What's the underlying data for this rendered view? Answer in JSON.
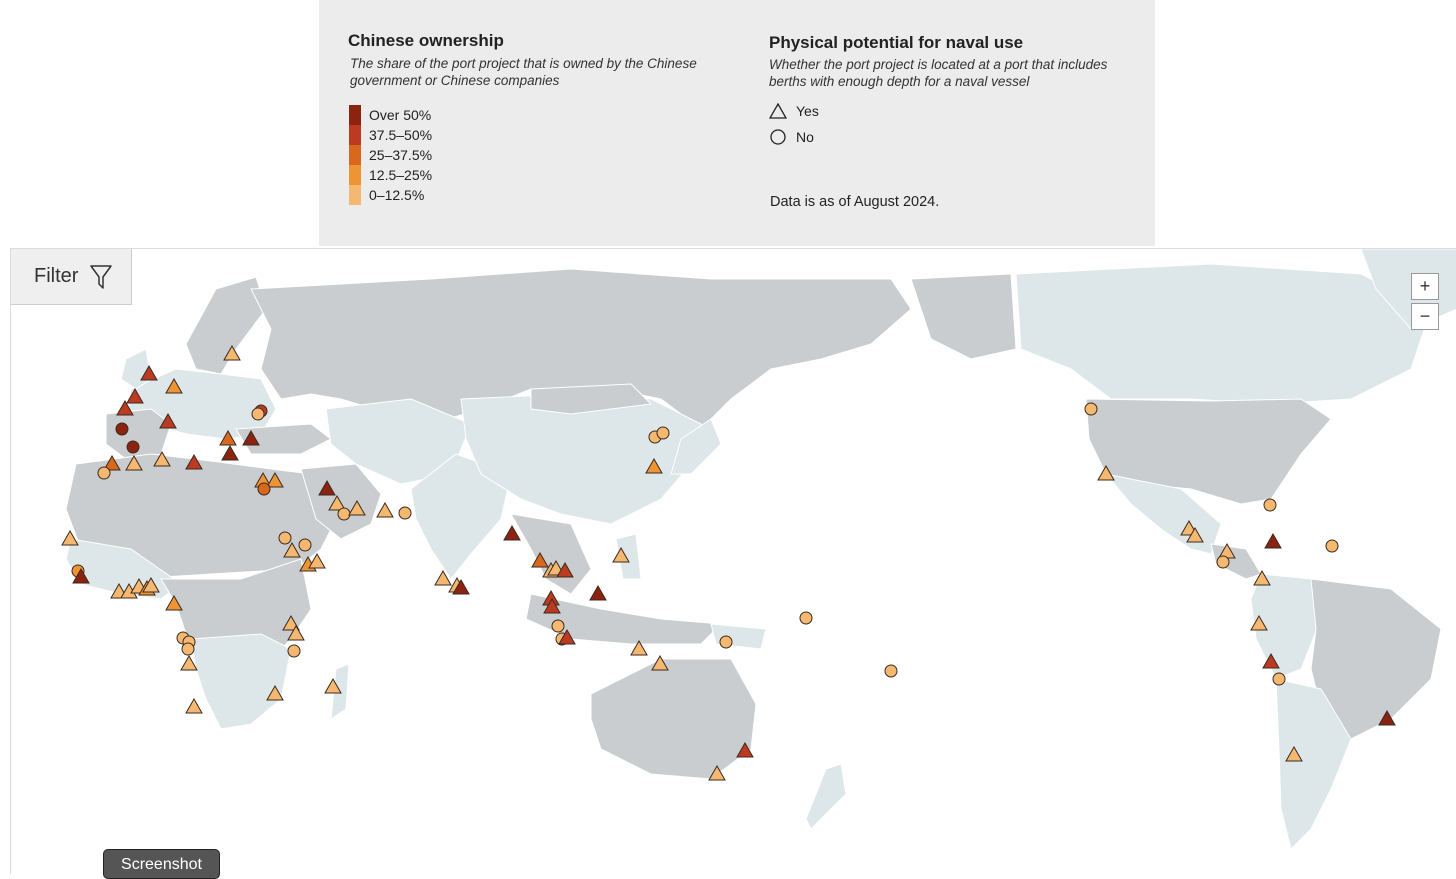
{
  "legend": {
    "ownership": {
      "title": "Chinese ownership",
      "description": "The share of the port project that is owned by the Chinese government or Chinese companies",
      "items": [
        {
          "label": "Over 50%",
          "color": "#8b2310"
        },
        {
          "label": "37.5–50%",
          "color": "#bd3a22"
        },
        {
          "label": "25–37.5%",
          "color": "#d9681f"
        },
        {
          "label": "12.5–25%",
          "color": "#ee9434"
        },
        {
          "label": "0–12.5%",
          "color": "#f5b870"
        }
      ]
    },
    "naval": {
      "title": "Physical potential for naval use",
      "description": "Whether the port project is located at a port that includes berths with enough depth for a naval vessel",
      "items": [
        {
          "label": "Yes",
          "shape": "triangle"
        },
        {
          "label": "No",
          "shape": "circle"
        }
      ]
    },
    "as_of": "Data is as of August 2024."
  },
  "toolbar": {
    "filter_label": "Filter",
    "zoom_in": "+",
    "zoom_out": "−"
  },
  "screenshot_button": {
    "label": "Screenshot"
  },
  "colors": {
    "land_dark": "#c9cdcf",
    "land_light": "#dde6e8",
    "ocean": "#ffffff",
    "marker_stroke": "#3a2a20"
  }
}
